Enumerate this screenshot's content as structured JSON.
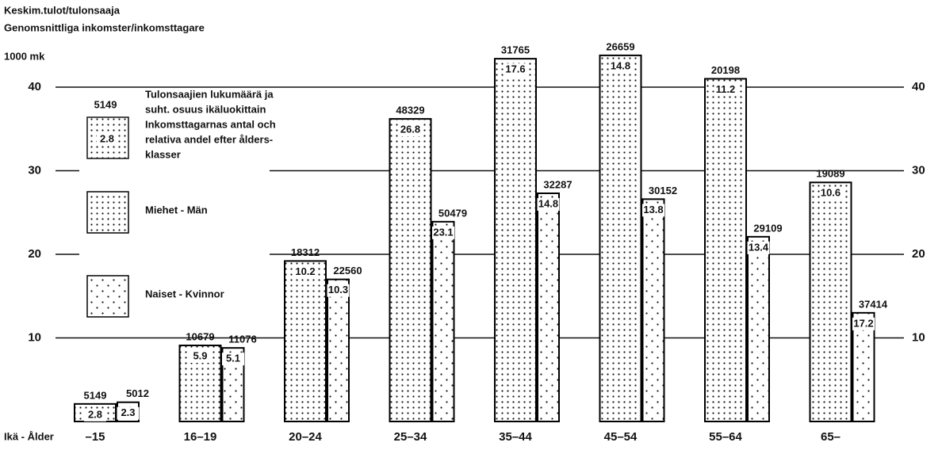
{
  "chart_data": {
    "type": "bar",
    "title": "Keskim.tulot/tulonsaaja",
    "subtitle": "Genomsnittliga inkomster/inkomsttagare",
    "y_label": "1000 mk",
    "x_label": "Ikä - Ålder",
    "categories": [
      "–15",
      "16–19",
      "20–24",
      "25–34",
      "35–44",
      "45–54",
      "55–64",
      "65–"
    ],
    "series": [
      {
        "name": "Miehet - Män",
        "color": "#000000",
        "pattern": "dense",
        "values": [
          2.1,
          9.1,
          19.2,
          36.2,
          43.4,
          43.8,
          41.0,
          28.6
        ],
        "counts": [
          5149,
          10679,
          18312,
          48329,
          31765,
          26659,
          20198,
          19089
        ],
        "shares": [
          2.8,
          5.9,
          10.2,
          26.8,
          17.6,
          14.8,
          11.2,
          10.6
        ]
      },
      {
        "name": "Naiset - Kvinnor",
        "color": "#000000",
        "pattern": "sparse",
        "values": [
          2.3,
          8.8,
          17.0,
          23.9,
          27.3,
          26.6,
          22.1,
          13.0
        ],
        "counts": [
          5012,
          11076,
          22560,
          50479,
          32287,
          30152,
          29109,
          37414
        ],
        "shares": [
          2.3,
          5.1,
          10.3,
          23.1,
          14.8,
          13.8,
          13.4,
          17.2
        ]
      }
    ],
    "legend": {
      "count": 5149,
      "share": 2.8,
      "text": [
        "Tulonsaajien lukumäärä ja",
        "suht. osuus ikäluokittain",
        "Inkomsttagarnas antal och",
        "relativa andel efter ålders-",
        "klasser"
      ]
    },
    "ylim": [
      0,
      50
    ],
    "yticks": [
      10,
      20,
      30,
      40
    ],
    "grid": true
  }
}
